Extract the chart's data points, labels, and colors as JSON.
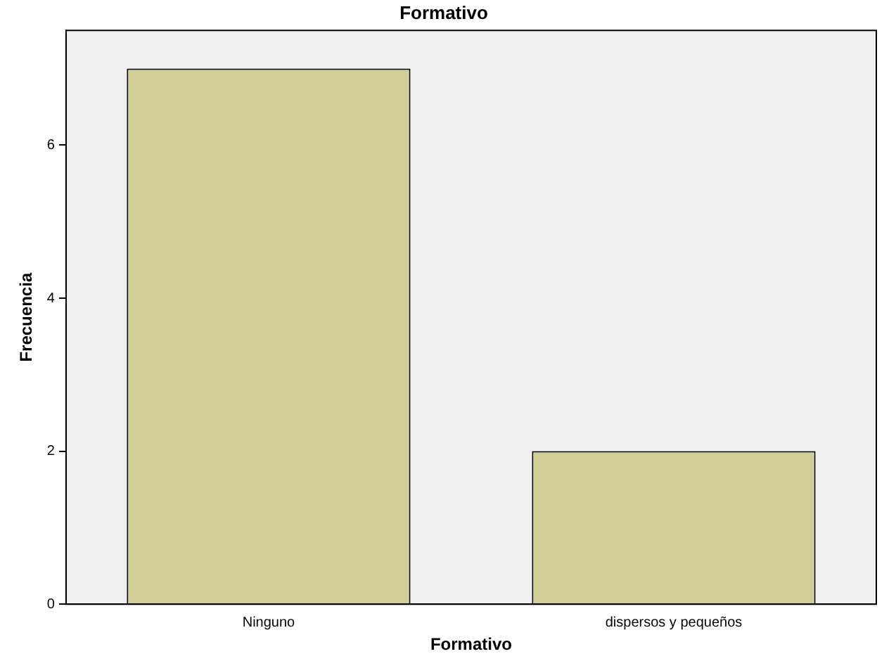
{
  "chart_data": {
    "type": "bar",
    "title": "Formativo",
    "xlabel": "Formativo",
    "ylabel": "Frecuencia",
    "categories": [
      "Ninguno",
      "dispersos y pequeños"
    ],
    "values": [
      7,
      2
    ],
    "color": "#d3ce98",
    "ylim": [
      0,
      7.5
    ],
    "yticks": [
      0,
      2,
      4,
      6
    ],
    "grid": false,
    "legend": false
  }
}
